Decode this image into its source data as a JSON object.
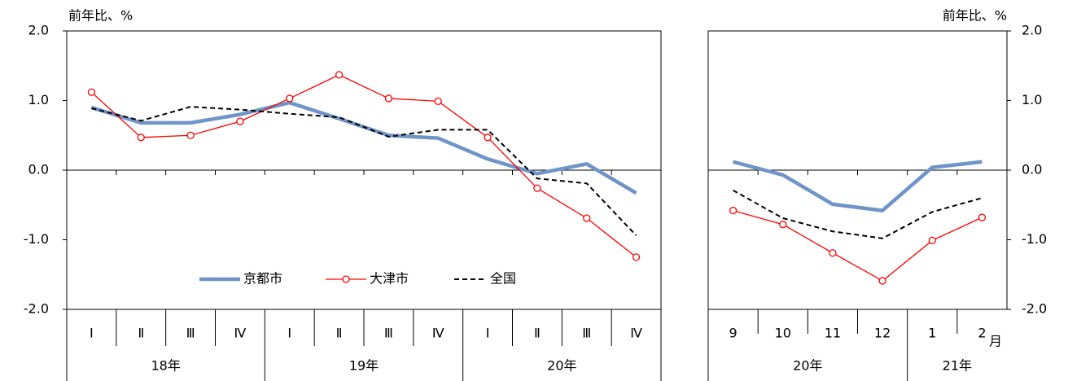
{
  "chart_data": [
    {
      "type": "line",
      "y_label": "前年比、%",
      "y_axis_side": "left",
      "categories": [
        "Ⅰ",
        "Ⅱ",
        "Ⅲ",
        "Ⅳ",
        "Ⅰ",
        "Ⅱ",
        "Ⅲ",
        "Ⅳ",
        "Ⅰ",
        "Ⅱ",
        "Ⅲ",
        "Ⅳ"
      ],
      "x_groups": [
        {
          "label": "18年",
          "count": 4
        },
        {
          "label": "19年",
          "count": 4
        },
        {
          "label": "20年",
          "count": 4
        }
      ],
      "ylim": [
        -2,
        2
      ],
      "yticks": [
        {
          "value": 2,
          "label": "2.0"
        },
        {
          "value": 1,
          "label": "1.0"
        },
        {
          "value": 0,
          "label": "0.0"
        },
        {
          "value": -1,
          "label": "-1.0"
        },
        {
          "value": -2,
          "label": "-2.0"
        }
      ],
      "legend": "lower center",
      "series": [
        {
          "name": "京都市",
          "color": "#6f94c8",
          "style": "thick",
          "values": [
            0.9,
            0.68,
            0.68,
            0.8,
            0.97,
            0.74,
            0.5,
            0.46,
            0.16,
            -0.05,
            0.09,
            -0.33
          ]
        },
        {
          "name": "大津市",
          "color": "#ff0000",
          "style": "marker",
          "values": [
            1.12,
            0.47,
            0.5,
            0.7,
            1.03,
            1.37,
            1.03,
            0.99,
            0.47,
            -0.26,
            -0.69,
            -1.25
          ]
        },
        {
          "name": "全国",
          "color": "#000000",
          "style": "dashed",
          "values": [
            0.89,
            0.71,
            0.91,
            0.87,
            0.81,
            0.76,
            0.48,
            0.58,
            0.58,
            -0.12,
            -0.19,
            -0.94
          ]
        }
      ]
    },
    {
      "type": "line",
      "y_label": "前年比、%",
      "y_axis_side": "right",
      "x_unit": "月",
      "categories": [
        "9",
        "10",
        "11",
        "12",
        "1",
        "2"
      ],
      "x_groups": [
        {
          "label": "20年",
          "count": 4
        },
        {
          "label": "21年",
          "count": 2
        }
      ],
      "ylim": [
        -2,
        2
      ],
      "yticks": [
        {
          "value": 2,
          "label": "2.0"
        },
        {
          "value": 1,
          "label": "1.0"
        },
        {
          "value": 0,
          "label": "0.0"
        },
        {
          "value": -1,
          "label": "-1.0"
        },
        {
          "value": -2,
          "label": "-2.0"
        }
      ],
      "series": [
        {
          "name": "京都市",
          "color": "#6f94c8",
          "style": "thick",
          "values": [
            0.12,
            -0.07,
            -0.49,
            -0.58,
            0.04,
            0.12
          ]
        },
        {
          "name": "大津市",
          "color": "#ff0000",
          "style": "marker",
          "values": [
            -0.58,
            -0.78,
            -1.19,
            -1.59,
            -1.01,
            -0.68
          ]
        },
        {
          "name": "全国",
          "color": "#000000",
          "style": "dashed",
          "values": [
            -0.29,
            -0.69,
            -0.88,
            -0.98,
            -0.6,
            -0.4
          ]
        }
      ]
    }
  ]
}
